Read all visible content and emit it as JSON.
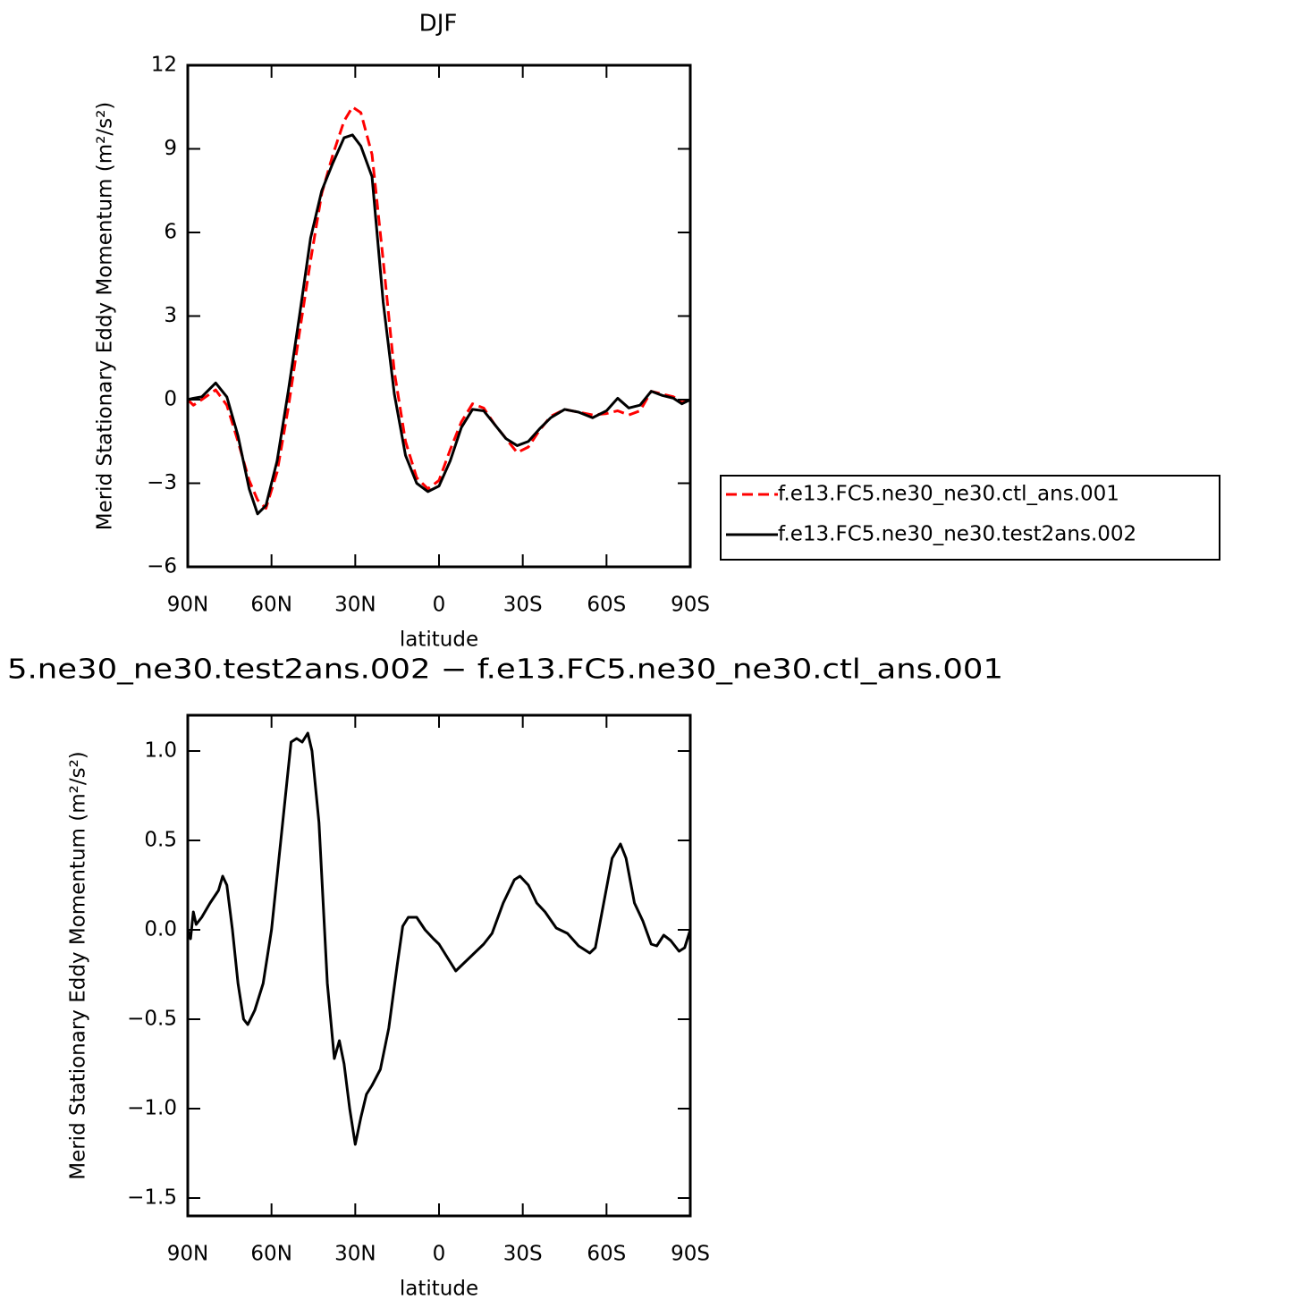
{
  "chart_data": [
    {
      "type": "line",
      "title": "DJF",
      "x_label": "latitude",
      "y_label": "Merid Stationary Eddy Momentum (m²/s²)",
      "x": [
        90,
        88,
        85,
        80,
        76,
        72,
        68,
        65,
        62,
        58,
        54,
        50,
        46,
        42,
        38,
        34,
        31,
        28,
        24,
        20,
        16,
        12,
        8,
        4,
        0,
        -4,
        -8,
        -12,
        -16,
        -20,
        -24,
        -28,
        -32,
        -36,
        -40,
        -45,
        -50,
        -55,
        -60,
        -64,
        -68,
        -72,
        -76,
        -80,
        -84,
        -87,
        -90
      ],
      "xlim": [
        90,
        -90
      ],
      "xticks": [
        {
          "value": 90,
          "label": "90N"
        },
        {
          "value": 60,
          "label": "60N"
        },
        {
          "value": 30,
          "label": "30N"
        },
        0,
        {
          "value": -30,
          "label": "30S"
        },
        {
          "value": -60,
          "label": "60S"
        },
        {
          "value": -90,
          "label": "90S"
        }
      ],
      "ylim": [
        -6,
        12
      ],
      "yticks": [
        {
          "value": -6,
          "label": "−6"
        },
        {
          "value": -3,
          "label": "−3"
        },
        0,
        3,
        6,
        9,
        12
      ],
      "legend": "right",
      "series": [
        {
          "name": "f.e13.FC5.ne30_ne30.ctl_ans.001",
          "color": "#ff0000",
          "dashed": true,
          "values": [
            0,
            -0.2,
            0,
            0.35,
            -0.2,
            -1.5,
            -2.9,
            -3.6,
            -3.9,
            -2.6,
            -0.3,
            2.4,
            5,
            7.4,
            8.8,
            10,
            10.5,
            10.3,
            8.8,
            5,
            1,
            -1.5,
            -2.8,
            -3.2,
            -2.9,
            -1.8,
            -0.8,
            -0.15,
            -0.3,
            -0.9,
            -1.4,
            -1.9,
            -1.7,
            -1.1,
            -0.6,
            -0.35,
            -0.45,
            -0.55,
            -0.5,
            -0.4,
            -0.55,
            -0.4,
            0.3,
            0.2,
            0.1,
            -0.1,
            0
          ]
        },
        {
          "name": "f.e13.FC5.ne30_ne30.test2ans.002",
          "color": "#000000",
          "dashed": false,
          "values": [
            0,
            0.05,
            0.1,
            0.6,
            0.1,
            -1.3,
            -3.2,
            -4.1,
            -3.8,
            -2.2,
            0.3,
            3,
            5.8,
            7.5,
            8.5,
            9.4,
            9.5,
            9.1,
            8,
            3.5,
            0.2,
            -2,
            -3,
            -3.3,
            -3.1,
            -2.2,
            -1,
            -0.35,
            -0.4,
            -0.9,
            -1.4,
            -1.65,
            -1.5,
            -1.05,
            -0.65,
            -0.35,
            -0.45,
            -0.65,
            -0.4,
            0.05,
            -0.3,
            -0.2,
            0.3,
            0.15,
            0.05,
            -0.15,
            0
          ]
        }
      ]
    },
    {
      "type": "line",
      "title": "5.ne30_ne30.test2ans.002 − f.e13.FC5.ne30_ne30.ctl_ans.001",
      "x_label": "latitude",
      "y_label": "Merid Stationary Eddy Momentum (m²/s²)",
      "x": [
        90,
        89,
        88,
        87,
        85,
        82,
        79,
        77.5,
        76,
        74,
        72,
        70,
        68.5,
        66,
        63,
        60,
        56,
        53,
        51,
        49,
        47,
        45.5,
        43,
        40,
        37.5,
        35.7,
        34,
        32,
        30,
        28,
        26,
        24,
        21,
        18,
        15,
        13,
        11,
        8,
        5,
        2,
        0,
        -4,
        -6,
        -8,
        -12,
        -16,
        -19,
        -23,
        -27,
        -29,
        -32,
        -35,
        -38,
        -42,
        -46,
        -50,
        -54,
        -56,
        -59,
        -62,
        -65,
        -67,
        -70,
        -73,
        -76,
        -78,
        -80.5,
        -83,
        -86,
        -88,
        -90
      ],
      "xlim": [
        90,
        -90
      ],
      "xticks": [
        {
          "value": 90,
          "label": "90N"
        },
        {
          "value": 60,
          "label": "60N"
        },
        {
          "value": 30,
          "label": "30N"
        },
        0,
        {
          "value": -30,
          "label": "30S"
        },
        {
          "value": -60,
          "label": "60S"
        },
        {
          "value": -90,
          "label": "90S"
        }
      ],
      "ylim": [
        -1.6,
        1.2
      ],
      "yticks": [
        {
          "value": -1.5,
          "label": "−1.5"
        },
        {
          "value": -1,
          "label": "−1.0"
        },
        {
          "value": -0.5,
          "label": "−0.5"
        },
        {
          "value": 0,
          "label": "0.0"
        },
        0.5,
        {
          "value": 1,
          "label": "1.0"
        }
      ],
      "series": [
        {
          "color": "#000000",
          "dashed": false,
          "values": [
            0,
            -0.05,
            0.1,
            0.03,
            0.07,
            0.15,
            0.22,
            0.3,
            0.25,
            0,
            -0.3,
            -0.5,
            -0.53,
            -0.45,
            -0.3,
            0,
            0.6,
            1.05,
            1.07,
            1.05,
            1.1,
            1,
            0.6,
            -0.3,
            -0.72,
            -0.62,
            -0.75,
            -1,
            -1.2,
            -1.05,
            -0.92,
            -0.87,
            -0.78,
            -0.55,
            -0.2,
            0.02,
            0.07,
            0.07,
            0,
            -0.05,
            -0.08,
            -0.18,
            -0.23,
            -0.2,
            -0.14,
            -0.08,
            -0.02,
            0.15,
            0.28,
            0.3,
            0.25,
            0.15,
            0.1,
            0.01,
            -0.02,
            -0.09,
            -0.13,
            -0.1,
            0.15,
            0.4,
            0.48,
            0.4,
            0.15,
            0.05,
            -0.08,
            -0.09,
            -0.03,
            -0.06,
            -0.12,
            -0.1,
            0
          ]
        }
      ]
    }
  ]
}
